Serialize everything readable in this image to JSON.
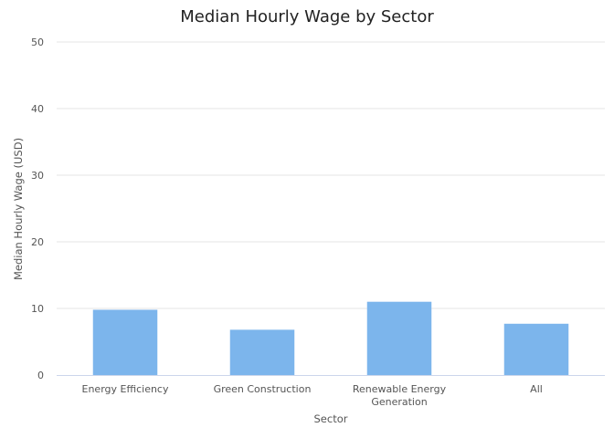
{
  "chart_data": {
    "type": "bar",
    "title": "Median Hourly Wage by Sector",
    "xlabel": "Sector",
    "ylabel": "Median Hourly Wage (USD)",
    "categories": [
      "Energy Efficiency",
      "Green Construction",
      "Renewable Energy Generation",
      "All"
    ],
    "category_lines": [
      [
        "Energy Efficiency"
      ],
      [
        "Green Construction"
      ],
      [
        "Renewable Energy",
        "Generation"
      ],
      [
        "All"
      ]
    ],
    "values": [
      9.8,
      6.8,
      11.0,
      7.7
    ],
    "ylim": [
      0,
      50
    ],
    "yticks": [
      "0",
      "10",
      "20",
      "30",
      "40",
      "50"
    ],
    "grid": true,
    "legend": "none",
    "colors": {
      "bar": "#7cb5ec",
      "grid": "#e6e6e6",
      "axis": "#ccd6eb"
    }
  }
}
